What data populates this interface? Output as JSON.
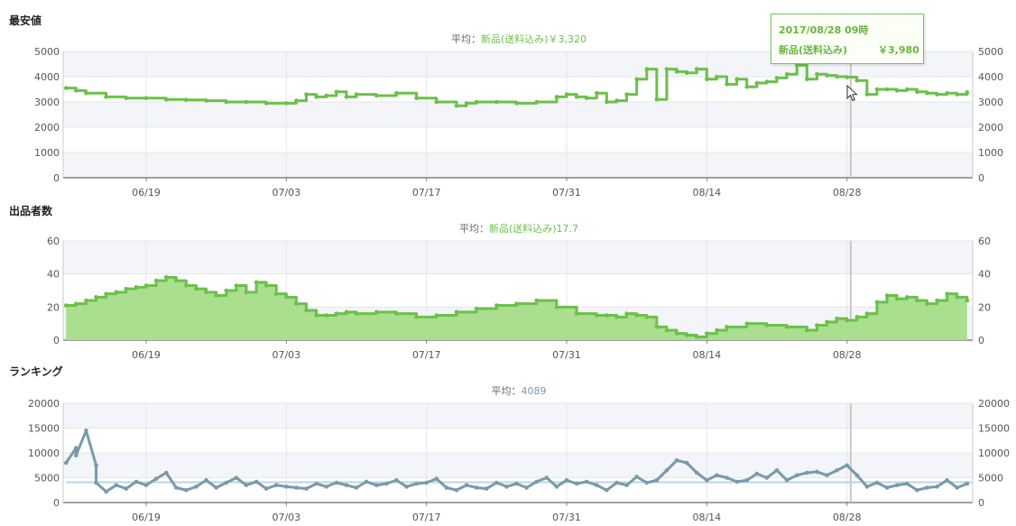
{
  "chart_data": [
    {
      "type": "line",
      "title": "最安値",
      "average_prefix": "平均：",
      "average_text": "新品(送料込み)￥3,320",
      "categories": [
        "06/19",
        "07/03",
        "07/17",
        "07/31",
        "08/14",
        "08/28"
      ],
      "ylim": [
        0,
        5000
      ],
      "yticks": [
        0,
        1000,
        2000,
        3000,
        4000,
        5000
      ],
      "grid": true,
      "series": [
        {
          "name": "新品(送料込み)",
          "color": "#6cc04a",
          "x": [
            "06/11",
            "06/12",
            "06/13",
            "06/15",
            "06/17",
            "06/19",
            "06/21",
            "06/23",
            "06/25",
            "06/27",
            "06/29",
            "07/01",
            "07/03",
            "07/04",
            "07/05",
            "07/06",
            "07/07",
            "07/08",
            "07/09",
            "07/10",
            "07/12",
            "07/14",
            "07/16",
            "07/18",
            "07/20",
            "07/21",
            "07/22",
            "07/24",
            "07/26",
            "07/28",
            "07/30",
            "07/31",
            "08/01",
            "08/02",
            "08/03",
            "08/04",
            "08/05",
            "08/06",
            "08/07",
            "08/08",
            "08/09",
            "08/10",
            "08/11",
            "08/12",
            "08/13",
            "08/14",
            "08/15",
            "08/16",
            "08/17",
            "08/18",
            "08/19",
            "08/20",
            "08/21",
            "08/22",
            "08/23",
            "08/24",
            "08/25",
            "08/26",
            "08/27",
            "08/28",
            "08/29",
            "08/30",
            "08/31",
            "09/01",
            "09/02",
            "09/03",
            "09/04",
            "09/05",
            "09/06",
            "09/07",
            "09/08",
            "09/09"
          ],
          "values": [
            3550,
            3450,
            3350,
            3200,
            3150,
            3150,
            3100,
            3080,
            3050,
            3000,
            3000,
            2950,
            2950,
            3050,
            3300,
            3200,
            3250,
            3400,
            3200,
            3300,
            3250,
            3350,
            3150,
            3000,
            2850,
            2950,
            3000,
            3000,
            2950,
            3000,
            3200,
            3300,
            3200,
            3150,
            3350,
            3000,
            3050,
            3300,
            3900,
            4300,
            3100,
            4300,
            4200,
            4150,
            4300,
            3900,
            4000,
            3700,
            3900,
            3600,
            3750,
            3800,
            3950,
            4100,
            4450,
            3900,
            4100,
            4050,
            4000,
            3980,
            3850,
            3300,
            3500,
            3500,
            3450,
            3500,
            3400,
            3350,
            3300,
            3350,
            3300,
            3380
          ]
        }
      ],
      "tooltip": {
        "date": "2017/08/28 09時",
        "label": "新品(送料込み)",
        "value": "￥3,980"
      }
    },
    {
      "type": "area",
      "title": "出品者数",
      "average_prefix": "平均：",
      "average_text": "新品(送料込み)17.7",
      "categories": [
        "06/19",
        "07/03",
        "07/17",
        "07/31",
        "08/14",
        "08/28"
      ],
      "ylim": [
        0,
        60
      ],
      "yticks": [
        0,
        20,
        40,
        60
      ],
      "grid": true,
      "series": [
        {
          "name": "新品(送料込み)",
          "color": "#6cc04a",
          "x": [
            "06/11",
            "06/12",
            "06/13",
            "06/14",
            "06/15",
            "06/16",
            "06/17",
            "06/18",
            "06/19",
            "06/20",
            "06/21",
            "06/22",
            "06/23",
            "06/24",
            "06/25",
            "06/26",
            "06/27",
            "06/28",
            "06/29",
            "06/30",
            "07/01",
            "07/02",
            "07/03",
            "07/04",
            "07/05",
            "07/06",
            "07/07",
            "07/08",
            "07/09",
            "07/10",
            "07/12",
            "07/14",
            "07/16",
            "07/18",
            "07/20",
            "07/22",
            "07/24",
            "07/26",
            "07/28",
            "07/30",
            "08/01",
            "08/03",
            "08/04",
            "08/05",
            "08/06",
            "08/07",
            "08/08",
            "08/09",
            "08/10",
            "08/11",
            "08/12",
            "08/13",
            "08/14",
            "08/15",
            "08/16",
            "08/18",
            "08/20",
            "08/22",
            "08/24",
            "08/25",
            "08/26",
            "08/27",
            "08/28",
            "08/29",
            "08/30",
            "08/31",
            "09/01",
            "09/02",
            "09/03",
            "09/04",
            "09/05",
            "09/06",
            "09/07",
            "09/08",
            "09/09"
          ],
          "values": [
            21,
            22,
            24,
            26,
            28,
            29,
            31,
            32,
            33,
            36,
            38,
            36,
            33,
            31,
            29,
            27,
            30,
            33,
            29,
            35,
            33,
            28,
            26,
            22,
            18,
            15,
            15,
            16,
            17,
            16,
            17,
            16,
            14,
            15,
            17,
            19,
            21,
            22,
            24,
            20,
            16,
            15,
            15,
            14,
            16,
            15,
            14,
            8,
            6,
            4,
            3,
            2,
            4,
            6,
            8,
            10,
            9,
            8,
            6,
            9,
            11,
            13,
            12,
            14,
            16,
            23,
            27,
            25,
            26,
            24,
            22,
            24,
            28,
            26,
            24
          ]
        }
      ]
    },
    {
      "type": "line",
      "title": "ランキング",
      "average_prefix": "平均：",
      "average_text": "4089",
      "average_value": 4089,
      "categories": [
        "06/19",
        "07/03",
        "07/17",
        "07/31",
        "08/14",
        "08/28"
      ],
      "ylim": [
        0,
        20000
      ],
      "yticks": [
        0,
        5000,
        10000,
        15000,
        20000
      ],
      "grid": true,
      "series": [
        {
          "name": "ランキング",
          "color": "#7a9aaa",
          "x": [
            "06/11",
            "06/12",
            "06/12",
            "06/13",
            "06/14",
            "06/14",
            "06/15",
            "06/16",
            "06/17",
            "06/18",
            "06/19",
            "06/20",
            "06/21",
            "06/22",
            "06/23",
            "06/24",
            "06/25",
            "06/26",
            "06/27",
            "06/28",
            "06/29",
            "06/30",
            "07/01",
            "07/02",
            "07/03",
            "07/04",
            "07/05",
            "07/06",
            "07/07",
            "07/08",
            "07/09",
            "07/10",
            "07/11",
            "07/12",
            "07/13",
            "07/14",
            "07/15",
            "07/16",
            "07/17",
            "07/18",
            "07/19",
            "07/20",
            "07/21",
            "07/22",
            "07/23",
            "07/24",
            "07/25",
            "07/26",
            "07/27",
            "07/28",
            "07/29",
            "07/30",
            "07/31",
            "08/01",
            "08/02",
            "08/03",
            "08/04",
            "08/05",
            "08/06",
            "08/07",
            "08/08",
            "08/09",
            "08/10",
            "08/11",
            "08/12",
            "08/13",
            "08/14",
            "08/15",
            "08/16",
            "08/17",
            "08/18",
            "08/19",
            "08/20",
            "08/21",
            "08/22",
            "08/23",
            "08/24",
            "08/25",
            "08/26",
            "08/27",
            "08/28",
            "08/29",
            "08/30",
            "08/31",
            "09/01",
            "09/02",
            "09/03",
            "09/04",
            "09/05",
            "09/06",
            "09/07",
            "09/08",
            "09/09"
          ],
          "values": [
            8000,
            11000,
            9500,
            14500,
            7500,
            4000,
            2200,
            3500,
            2800,
            4200,
            3500,
            4800,
            6000,
            3000,
            2500,
            3200,
            4500,
            3000,
            4000,
            5000,
            3500,
            4200,
            2800,
            3500,
            3200,
            3000,
            2800,
            3800,
            3200,
            4000,
            3500,
            3000,
            4200,
            3500,
            3800,
            4500,
            3200,
            3800,
            4000,
            4800,
            3000,
            2500,
            3500,
            3000,
            2800,
            4000,
            3200,
            3800,
            3000,
            4200,
            5000,
            3200,
            4500,
            3800,
            4200,
            3500,
            2500,
            4000,
            3500,
            5200,
            4000,
            4500,
            6500,
            8500,
            8000,
            6000,
            4500,
            5500,
            5000,
            4200,
            4500,
            5800,
            5000,
            6500,
            4500,
            5500,
            6000,
            6200,
            5500,
            6500,
            7500,
            5500,
            3200,
            4000,
            3000,
            3500,
            3800,
            2500,
            3000,
            3200,
            4500,
            3000,
            3800
          ]
        }
      ]
    }
  ]
}
